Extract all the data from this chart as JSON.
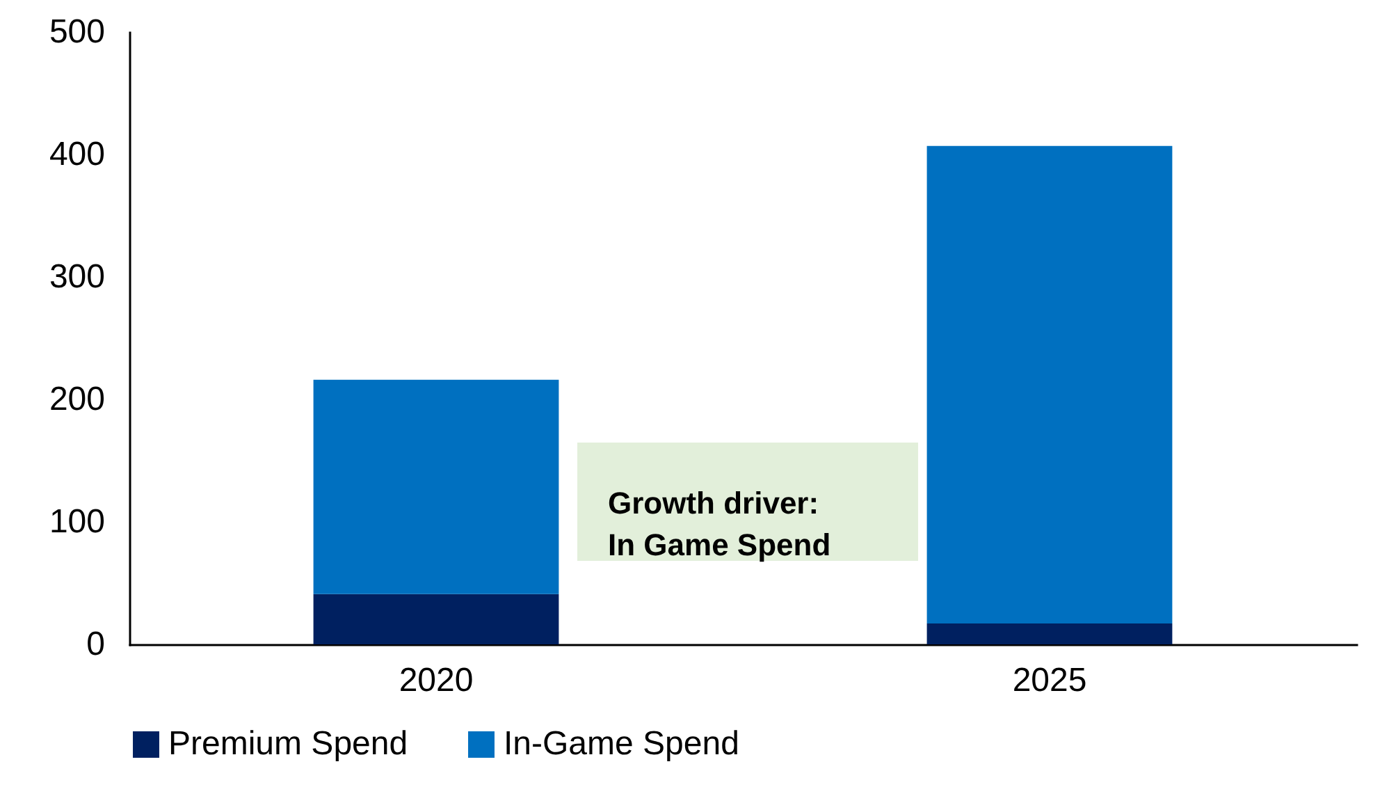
{
  "chart_data": {
    "type": "bar",
    "stacked": true,
    "categories": [
      "2020",
      "2025"
    ],
    "series": [
      {
        "name": "Premium Spend",
        "color": "#002060",
        "values": [
          41,
          17
        ]
      },
      {
        "name": "In-Game Spend",
        "color": "#0070c0",
        "values": [
          175,
          390
        ]
      }
    ],
    "ylim": [
      0,
      500
    ],
    "yticks": [
      0,
      100,
      200,
      300,
      400,
      500
    ],
    "grid": false,
    "legend": "bottom",
    "annotations": [
      "Growth driver:\nIn Game Spend"
    ]
  }
}
